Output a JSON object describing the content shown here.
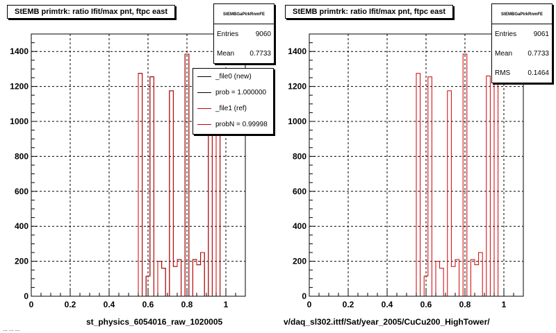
{
  "panels": [
    {
      "title": "StEMB primtrk: ratio Ifit/max pnt, ftpc east",
      "stats": {
        "name": "StEMBGaPtrkRnmFE",
        "rows": [
          {
            "label": "Entries",
            "value": "9060"
          },
          {
            "label": "Mean",
            "value": "0.7733"
          }
        ]
      },
      "legend": [
        {
          "label": "_file0 (new)",
          "color": "#000000"
        },
        {
          "label": "prob = 1.000000",
          "color": "#000000"
        },
        {
          "label": "_file1 (ref)",
          "color": "#cc0000"
        },
        {
          "label": "probN = 0.99998",
          "color": "#cc0000"
        }
      ],
      "xtitle": "st_physics_6054016_raw_1020005"
    },
    {
      "title": "StEMB primtrk: ratio Ifit/max pnt, ftpc east",
      "stats": {
        "name": "StEMBGaPtrkRnmFE",
        "rows": [
          {
            "label": "Entries",
            "value": "9061"
          },
          {
            "label": "Mean",
            "value": "0.7733"
          },
          {
            "label": "RMS",
            "value": "0.1464"
          }
        ]
      },
      "legend": [],
      "xtitle": "v/daq_sl302.ittf/Sat/year_2005/CuCu200_HighTower/"
    }
  ],
  "footer_text": "... ... ...",
  "colors": {
    "hist_new": "#000000",
    "hist_ref": "#cc0000",
    "frame": "#000000",
    "grid": "#000000"
  },
  "chart_data": [
    {
      "type": "histogram",
      "title": "StEMB primtrk: ratio Ifit/max pnt, ftpc east",
      "xlabel": "st_physics_6054016_raw_1020005",
      "ylabel": "",
      "xlim": [
        0,
        1.1
      ],
      "ylim": [
        0,
        1500
      ],
      "xticks": [
        "0",
        "0.2",
        "0.4",
        "0.6",
        "0.8",
        "1"
      ],
      "yticks": [
        "0",
        "200",
        "400",
        "600",
        "800",
        "1000",
        "1200",
        "1400"
      ],
      "grid": true,
      "legend_position": "top-right",
      "bin_edges": [
        0,
        0.55,
        0.57,
        0.59,
        0.61,
        0.63,
        0.65,
        0.67,
        0.69,
        0.71,
        0.73,
        0.75,
        0.77,
        0.79,
        0.81,
        0.83,
        0.85,
        0.87,
        0.89,
        0.91,
        0.93,
        0.95,
        0.97,
        0.99,
        1.01,
        1.1
      ],
      "series": [
        {
          "name": "_file0 (new)",
          "values": [
            0,
            1275,
            0,
            115,
            1255,
            0,
            200,
            160,
            0,
            1175,
            170,
            210,
            0,
            1385,
            0,
            210,
            180,
            250,
            0,
            1260,
            0,
            1260,
            0,
            0,
            0
          ]
        },
        {
          "name": "_file1 (ref)",
          "values": [
            0,
            1275,
            0,
            115,
            1255,
            0,
            200,
            160,
            0,
            1175,
            170,
            210,
            0,
            1385,
            0,
            210,
            180,
            250,
            0,
            1260,
            0,
            1260,
            0,
            0,
            0
          ]
        }
      ]
    },
    {
      "type": "histogram",
      "title": "StEMB primtrk: ratio Ifit/max pnt, ftpc east",
      "xlabel": "v/daq_sl302.ittf/Sat/year_2005/CuCu200_HighTower/",
      "ylabel": "",
      "xlim": [
        0,
        1.1
      ],
      "ylim": [
        0,
        1500
      ],
      "xticks": [
        "0",
        "0.2",
        "0.4",
        "0.6",
        "0.8",
        "1"
      ],
      "yticks": [
        "0",
        "200",
        "400",
        "600",
        "800",
        "1000",
        "1200",
        "1400"
      ],
      "grid": true,
      "bin_edges": [
        0,
        0.55,
        0.57,
        0.59,
        0.61,
        0.63,
        0.65,
        0.67,
        0.69,
        0.71,
        0.73,
        0.75,
        0.77,
        0.79,
        0.81,
        0.83,
        0.85,
        0.87,
        0.89,
        0.91,
        0.93,
        0.95,
        0.97,
        0.99,
        1.01,
        1.1
      ],
      "series": [
        {
          "name": "",
          "values": [
            0,
            1275,
            0,
            115,
            1255,
            0,
            200,
            160,
            0,
            1175,
            170,
            210,
            0,
            1385,
            0,
            210,
            180,
            250,
            0,
            1260,
            0,
            1260,
            0,
            0,
            0
          ]
        }
      ]
    }
  ]
}
